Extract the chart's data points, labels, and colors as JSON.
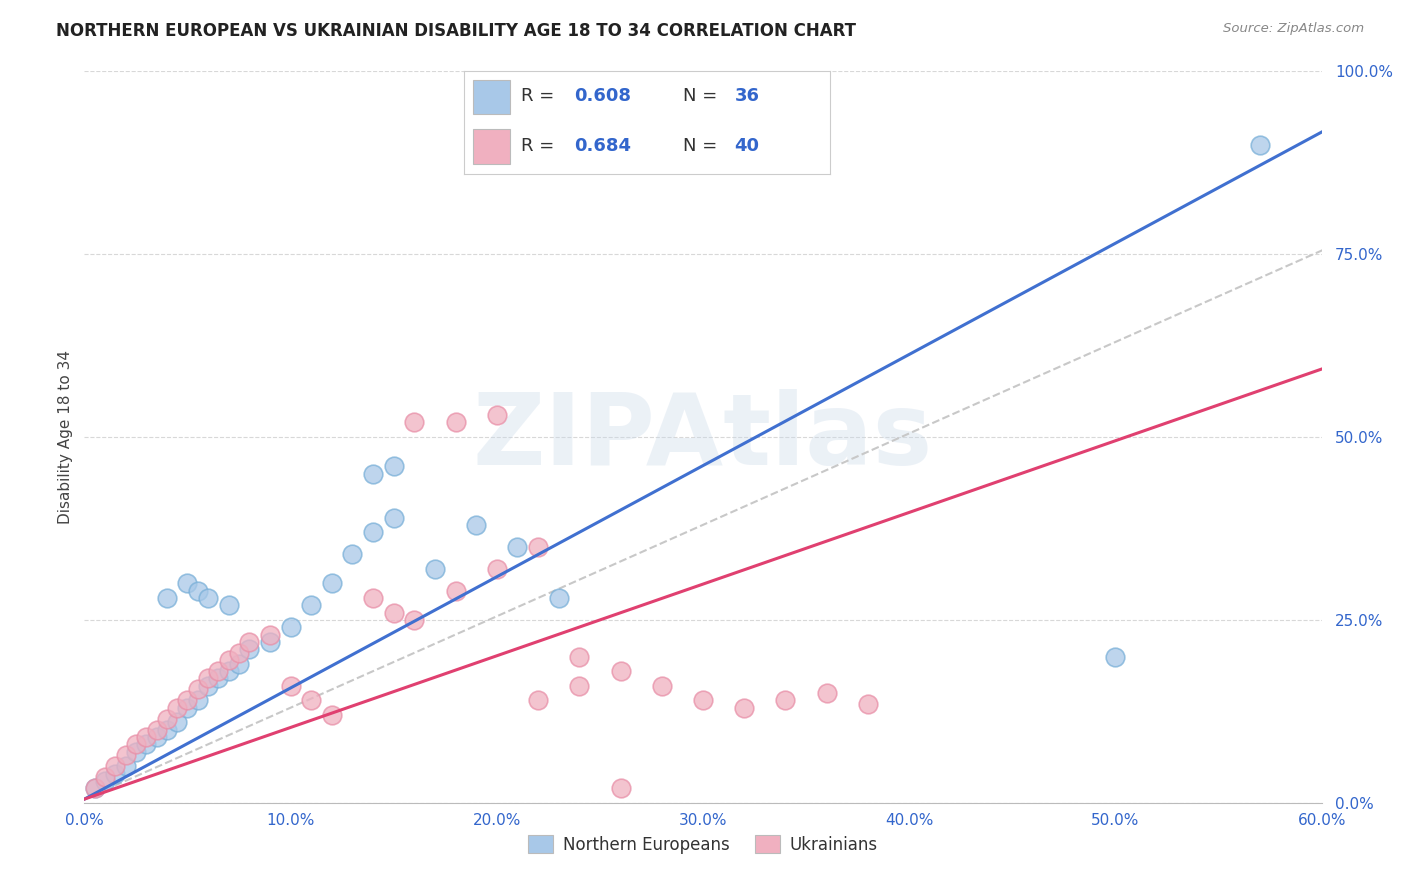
{
  "title": "NORTHERN EUROPEAN VS UKRAINIAN DISABILITY AGE 18 TO 34 CORRELATION CHART",
  "source": "Source: ZipAtlas.com",
  "xlabel_ticks": [
    "0.0%",
    "10.0%",
    "20.0%",
    "30.0%",
    "40.0%",
    "50.0%",
    "60.0%"
  ],
  "ylabel_right_ticks": [
    "0.0%",
    "25.0%",
    "50.0%",
    "75.0%",
    "100.0%"
  ],
  "xlim": [
    0,
    60
  ],
  "ylim": [
    0,
    100
  ],
  "ylabel": "Disability Age 18 to 34",
  "legend_bottom_labels": [
    "Northern Europeans",
    "Ukrainians"
  ],
  "blue_color": "#a8c8e8",
  "pink_color": "#f0b0c0",
  "blue_line_color": "#4070d0",
  "pink_line_color": "#e04070",
  "gray_dash_color": "#c8c8c8",
  "watermark": "ZIPAtlas",
  "R_blue": "0.608",
  "N_blue": "36",
  "R_pink": "0.684",
  "N_pink": "40",
  "legend_text_color": "#3366cc",
  "legend_black": "#333333",
  "blue_line_slope": 1.52,
  "blue_line_intercept": 0.5,
  "pink_line_slope": 0.98,
  "pink_line_intercept": 0.5,
  "gray_line_slope": 1.25,
  "gray_line_intercept": 0.5,
  "blue_scatter_x": [
    0.5,
    1.0,
    1.5,
    2.0,
    2.5,
    3.0,
    3.5,
    4.0,
    4.5,
    5.0,
    5.5,
    6.0,
    6.5,
    7.0,
    7.5,
    8.0,
    9.0,
    10.0,
    11.0,
    12.0,
    13.0,
    14.0,
    15.0,
    17.0,
    19.0,
    21.0,
    23.0,
    14.0,
    15.0,
    50.0,
    57.0,
    4.0,
    5.0,
    5.5,
    6.0,
    7.0
  ],
  "blue_scatter_y": [
    2.0,
    3.0,
    4.0,
    5.0,
    7.0,
    8.0,
    9.0,
    10.0,
    11.0,
    13.0,
    14.0,
    16.0,
    17.0,
    18.0,
    19.0,
    21.0,
    22.0,
    24.0,
    27.0,
    30.0,
    34.0,
    37.0,
    39.0,
    32.0,
    38.0,
    35.0,
    28.0,
    45.0,
    46.0,
    20.0,
    90.0,
    28.0,
    30.0,
    29.0,
    28.0,
    27.0
  ],
  "pink_scatter_x": [
    0.5,
    1.0,
    1.5,
    2.0,
    2.5,
    3.0,
    3.5,
    4.0,
    4.5,
    5.0,
    5.5,
    6.0,
    6.5,
    7.0,
    7.5,
    8.0,
    9.0,
    10.0,
    11.0,
    12.0,
    14.0,
    15.0,
    16.0,
    18.0,
    20.0,
    22.0,
    24.0,
    26.0,
    28.0,
    30.0,
    32.0,
    34.0,
    36.0,
    38.0,
    20.0,
    22.0,
    24.0,
    26.0,
    18.0,
    16.0
  ],
  "pink_scatter_y": [
    2.0,
    3.5,
    5.0,
    6.5,
    8.0,
    9.0,
    10.0,
    11.5,
    13.0,
    14.0,
    15.5,
    17.0,
    18.0,
    19.5,
    20.5,
    22.0,
    23.0,
    16.0,
    14.0,
    12.0,
    28.0,
    26.0,
    25.0,
    29.0,
    32.0,
    35.0,
    20.0,
    18.0,
    16.0,
    14.0,
    13.0,
    14.0,
    15.0,
    13.5,
    53.0,
    14.0,
    16.0,
    2.0,
    52.0,
    52.0
  ]
}
